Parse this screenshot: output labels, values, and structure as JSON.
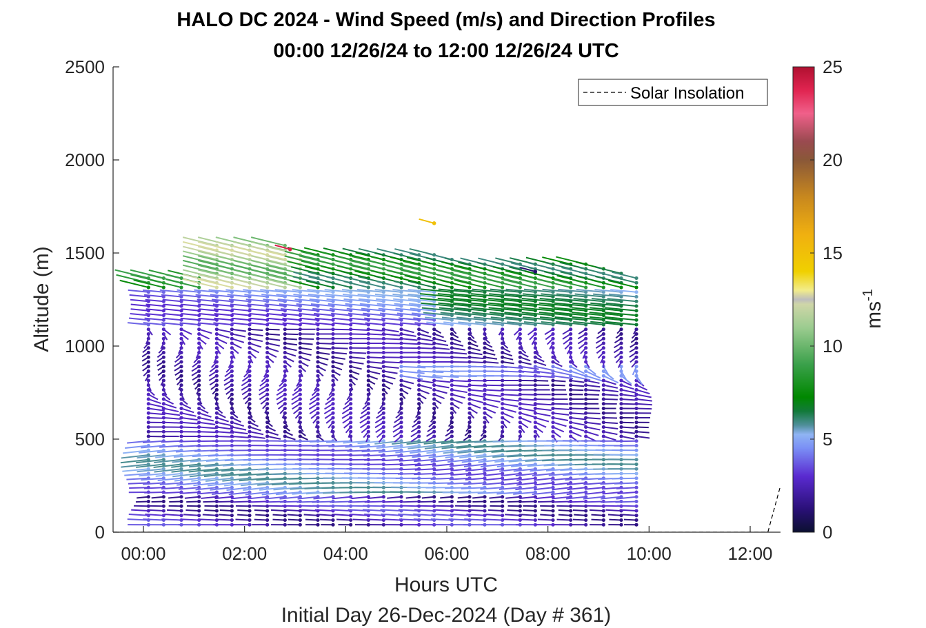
{
  "chart_data": {
    "type": "quiver",
    "title": "HALO DC 2024 - Wind Speed (m/s) and Direction Profiles",
    "subtitle": "00:00 12/26/24 to 12:00 12/26/24  UTC",
    "xlabel": "Hours UTC",
    "xlabel2": "Initial Day 26-Dec-2024 (Day # 361)",
    "ylabel": "Altitude (m)",
    "xlim": [
      -0.6,
      12.6
    ],
    "ylim": [
      0,
      2500
    ],
    "x_ticks": [
      0,
      2,
      4,
      6,
      8,
      10,
      12
    ],
    "x_tick_labels": [
      "00:00",
      "02:00",
      "04:00",
      "06:00",
      "08:00",
      "10:00",
      "12:00"
    ],
    "y_ticks": [
      0,
      500,
      1000,
      1500,
      2000,
      2500
    ],
    "y_tick_labels": [
      "0",
      "500",
      "1000",
      "1500",
      "2000",
      "2500"
    ],
    "legend": {
      "label": "Solar Insolation",
      "style": "dashed black line",
      "location": "top-right"
    },
    "colorbar": {
      "label": "ms",
      "label_superscript": "-1",
      "range": [
        0,
        25
      ],
      "ticks": [
        0,
        5,
        10,
        15,
        20,
        25
      ],
      "tick_labels": [
        "0",
        "5",
        "10",
        "15",
        "20",
        "25"
      ]
    },
    "solar_insolation": {
      "x": [
        -0.6,
        12.35,
        12.6
      ],
      "y": [
        0,
        0,
        250
      ]
    },
    "wind_profiles": {
      "times_hours": [
        0.1,
        0.4,
        0.75,
        1.1,
        1.45,
        1.75,
        2.1,
        2.45,
        2.8,
        3.1,
        3.45,
        3.75,
        4.1,
        4.45,
        4.75,
        5.1,
        5.45,
        5.75,
        6.1,
        6.45,
        6.75,
        7.1,
        7.45,
        7.75,
        8.1,
        8.45,
        8.75,
        9.1,
        9.45,
        9.75
      ],
      "altitude_top_m": [
        1370,
        1370,
        1370,
        1370,
        1540,
        1540,
        1540,
        1540,
        1540,
        1500,
        1500,
        1500,
        1500,
        1500,
        1500,
        1500,
        1500,
        1500,
        1480,
        1440,
        1440,
        1440,
        1440,
        1440,
        1440,
        1440,
        1450,
        1420,
        1400,
        1370
      ],
      "altitude_bottom_m": [
        40,
        40,
        40,
        40,
        40,
        40,
        40,
        40,
        40,
        40,
        40,
        40,
        40,
        40,
        40,
        40,
        40,
        40,
        40,
        40,
        40,
        40,
        40,
        40,
        40,
        40,
        40,
        40,
        40,
        40
      ],
      "altitude_step_m": 25,
      "speed_regimes_ms": [
        {
          "layer_m": [
            0,
            200
          ],
          "speed": 3.0,
          "direction_deg": 260
        },
        {
          "layer_m": [
            200,
            500
          ],
          "speed": 5.0,
          "direction_deg": 265
        },
        {
          "layer_m": [
            500,
            1100
          ],
          "speed": 1.5,
          "direction_deg": 180
        },
        {
          "layer_m": [
            1100,
            1300
          ],
          "speed": 5.0,
          "direction_deg": 285
        },
        {
          "layer_m": [
            1300,
            1550
          ],
          "speed": 8.5,
          "direction_deg": 300
        }
      ],
      "isolated_barbs": [
        {
          "x": 2.9,
          "y": 1520,
          "speed": 24.0
        },
        {
          "x": 5.75,
          "y": 1660,
          "speed": 15.0
        },
        {
          "x": 7.75,
          "y": 1400,
          "speed": 1.0
        }
      ]
    }
  }
}
